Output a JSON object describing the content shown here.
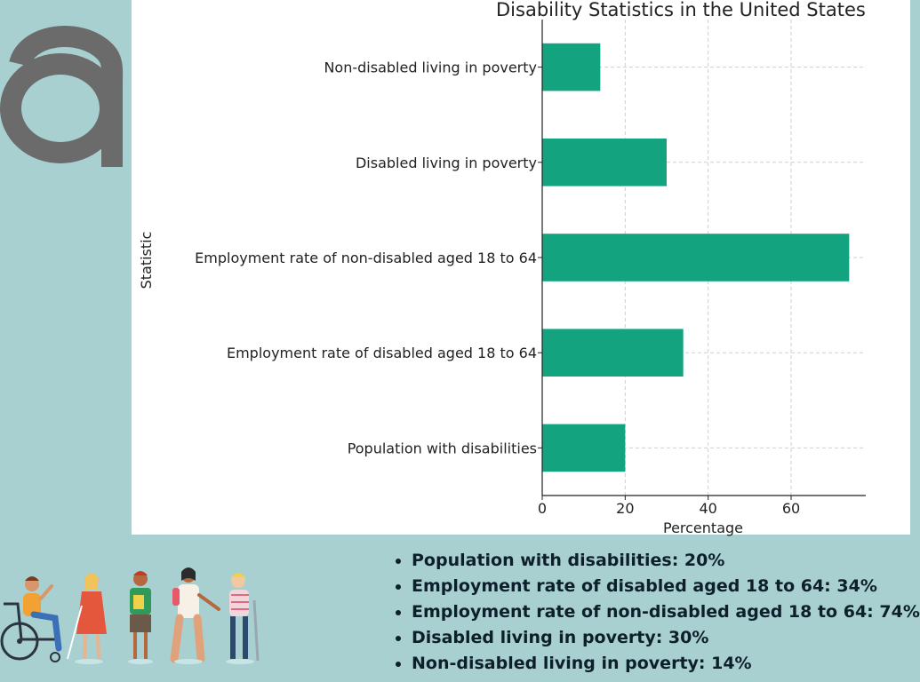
{
  "chart_data": {
    "type": "bar",
    "orientation": "horizontal",
    "title": "Disability Statistics in the United States",
    "xlabel": "Percentage",
    "ylabel": "Statistic",
    "categories": [
      "Population with disabilities",
      "Employment rate of disabled aged 18 to 64",
      "Employment rate of non-disabled aged 18 to 64",
      "Disabled living in poverty",
      "Non-disabled living in poverty"
    ],
    "values": [
      20,
      34,
      74,
      30,
      14
    ],
    "xlim": [
      0,
      78
    ],
    "xticks": [
      0,
      20,
      40,
      60
    ],
    "grid": true,
    "bar_color": "#14a37f"
  },
  "summary": {
    "items": [
      "Population with disabilities: 20%",
      "Employment rate of disabled aged 18 to 64: 34%",
      "Employment rate of non-disabled aged 18 to 64: 74%",
      "Disabled living in poverty: 30%",
      "Non-disabled living in poverty: 14%"
    ]
  },
  "colors": {
    "background": "#a8d0d0",
    "logo": "#6b6b6b",
    "text_dark": "#0d1f2b"
  },
  "icons": {
    "logo": "letter-a-logo",
    "illustration": "people-with-disabilities-illustration"
  }
}
